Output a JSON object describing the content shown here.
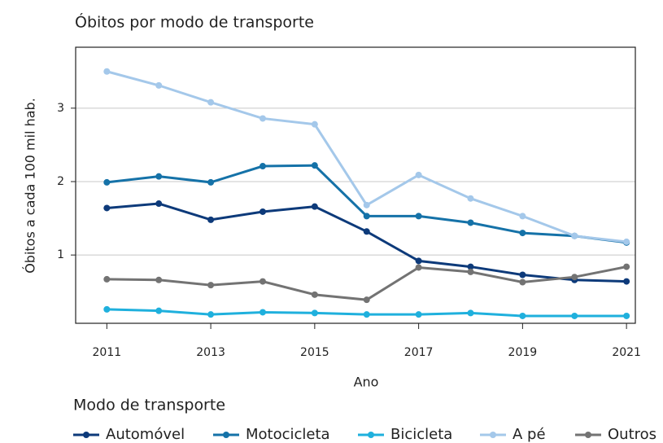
{
  "chart_data": {
    "type": "line",
    "subtitle": "Óbitos por modo de transporte",
    "x_label": "Ano",
    "y_label": "Óbitos a cada 100 mil hab.",
    "legend_title": "Modo de transporte",
    "legend_position": "bottom",
    "grid": true,
    "x": [
      2011,
      2012,
      2013,
      2014,
      2015,
      2016,
      2017,
      2018,
      2019,
      2020,
      2021
    ],
    "xlim": [
      2010.4,
      2021.17
    ],
    "xticks": [
      2011,
      2013,
      2015,
      2017,
      2019,
      2021
    ],
    "ylim": [
      0.07,
      3.83
    ],
    "yticks": [
      1,
      2,
      3
    ],
    "series": [
      {
        "name": "Automóvel",
        "color": "#0d3a7a",
        "values": [
          1.64,
          1.7,
          1.48,
          1.59,
          1.66,
          1.32,
          0.92,
          0.84,
          0.73,
          0.66,
          0.64
        ]
      },
      {
        "name": "Motocicleta",
        "color": "#1572a8",
        "values": [
          1.99,
          2.07,
          1.99,
          2.21,
          2.22,
          1.53,
          1.53,
          1.44,
          1.3,
          1.26,
          1.17
        ]
      },
      {
        "name": "Bicicleta",
        "color": "#1fb0dd",
        "values": [
          0.26,
          0.24,
          0.19,
          0.22,
          0.21,
          0.19,
          0.19,
          0.21,
          0.17,
          0.17,
          0.17
        ]
      },
      {
        "name": "A pé",
        "color": "#a4c8ea",
        "values": [
          3.5,
          3.31,
          3.08,
          2.86,
          2.78,
          1.68,
          2.09,
          1.77,
          1.53,
          1.26,
          1.18
        ]
      },
      {
        "name": "Outros",
        "color": "#737373",
        "values": [
          0.67,
          0.66,
          0.59,
          0.64,
          0.46,
          0.39,
          0.83,
          0.77,
          0.63,
          0.7,
          0.84
        ]
      }
    ]
  }
}
